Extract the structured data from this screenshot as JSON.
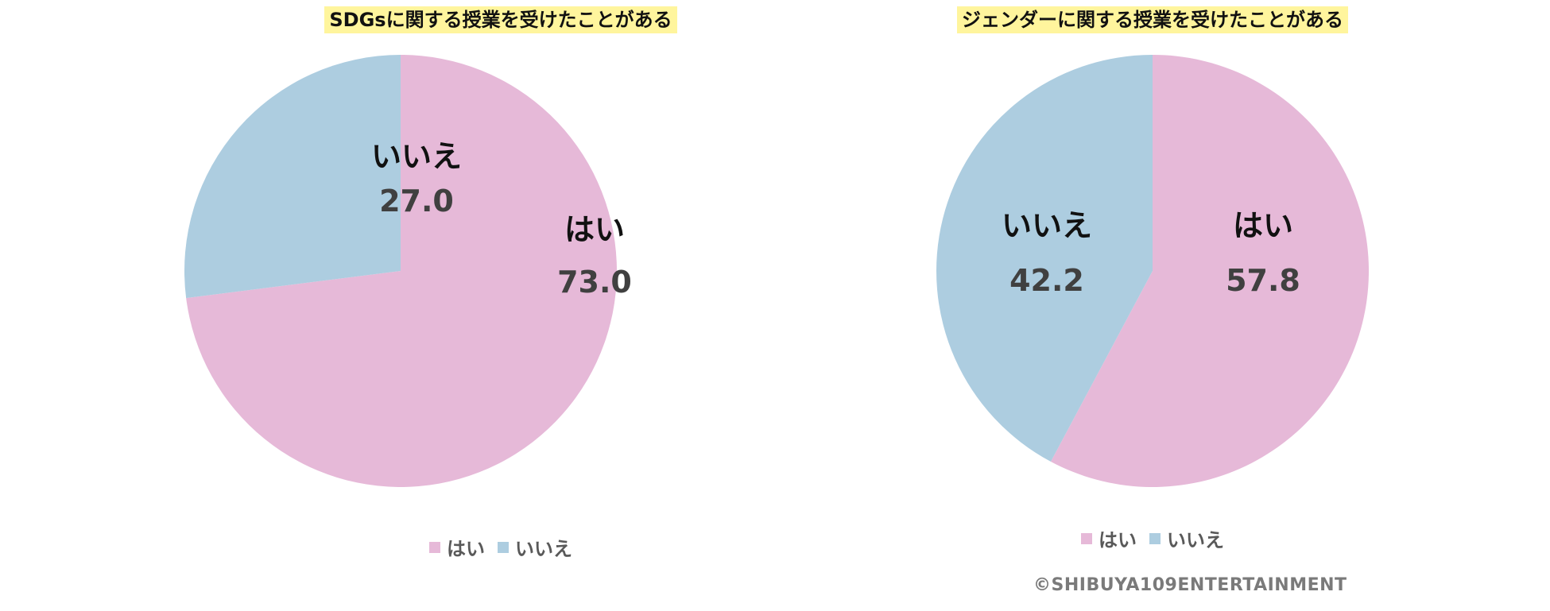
{
  "colors": {
    "yes": "#E6B9D8",
    "no": "#ADCDE0"
  },
  "chart_data": [
    {
      "type": "pie",
      "title": "SDGsに関する授業を受けたことがある",
      "slices": [
        {
          "label": "はい",
          "value": 73.0,
          "display": "73.0"
        },
        {
          "label": "いいえ",
          "value": 27.0,
          "display": "27.0"
        }
      ],
      "legend": [
        "はい",
        "いいえ"
      ],
      "legend_position": "bottom"
    },
    {
      "type": "pie",
      "title": "ジェンダーに関する授業を受けたことがある",
      "slices": [
        {
          "label": "はい",
          "value": 57.8,
          "display": "57.8"
        },
        {
          "label": "いいえ",
          "value": 42.2,
          "display": "42.2"
        }
      ],
      "legend": [
        "はい",
        "いいえ"
      ],
      "legend_position": "bottom"
    }
  ],
  "copyright": "©SHIBUYA109ENTERTAINMENT"
}
